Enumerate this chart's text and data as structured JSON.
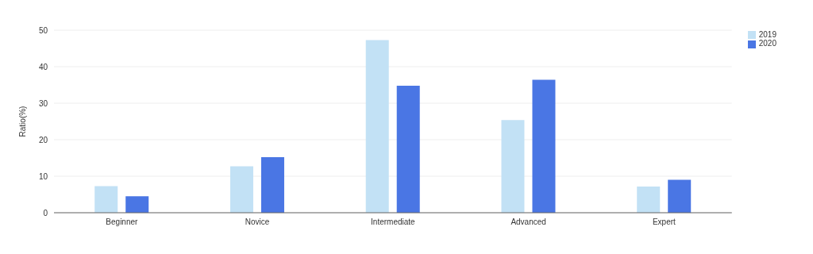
{
  "chart_data": {
    "type": "bar",
    "ylabel": "Ratio(%)",
    "categories": [
      "Beginner",
      "Novice",
      "Intermediate",
      "Advanced",
      "Expert"
    ],
    "series": [
      {
        "name": "2019",
        "color": "#c2e1f5",
        "values": [
          7.3,
          12.7,
          47.3,
          25.4,
          7.2
        ]
      },
      {
        "name": "2020",
        "color": "#4a76e4",
        "values": [
          4.5,
          15.2,
          34.8,
          36.4,
          9.0
        ]
      }
    ],
    "ylim": [
      0,
      50
    ],
    "yticks": [
      0,
      10,
      20,
      30,
      40,
      50
    ],
    "grid": "y",
    "legend": "top right"
  }
}
